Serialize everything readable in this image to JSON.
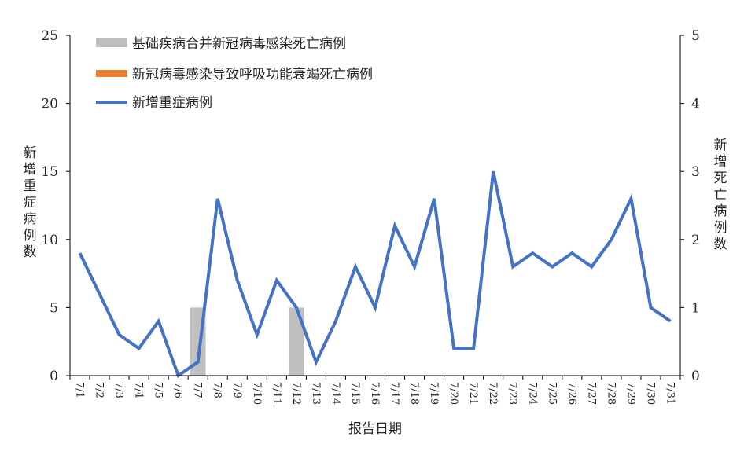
{
  "chart_data": {
    "type": "bar+line",
    "categories": [
      "7/1",
      "7/2",
      "7/3",
      "7/4",
      "7/5",
      "7/6",
      "7/7",
      "7/8",
      "7/9",
      "7/10",
      "7/11",
      "7/12",
      "7/13",
      "7/14",
      "7/15",
      "7/16",
      "7/17",
      "7/18",
      "7/19",
      "7/20",
      "7/21",
      "7/22",
      "7/23",
      "7/24",
      "7/25",
      "7/26",
      "7/27",
      "7/28",
      "7/29",
      "7/30",
      "7/31"
    ],
    "series": [
      {
        "name": "基础疾病合并新冠病毒感染死亡病例",
        "kind": "bar",
        "axis": "right",
        "color": "#bfbfbf",
        "values": [
          0,
          0,
          0,
          0,
          0,
          0,
          1,
          0,
          0,
          0,
          0,
          1,
          0,
          0,
          0,
          0,
          0,
          0,
          0,
          0,
          0,
          0,
          0,
          0,
          0,
          0,
          0,
          0,
          0,
          0,
          0
        ]
      },
      {
        "name": "新冠病毒感染导致呼吸功能衰竭死亡病例",
        "kind": "bar",
        "axis": "right",
        "color": "#ed7d31",
        "values": [
          0,
          0,
          0,
          0,
          0,
          0,
          0,
          0,
          0,
          0,
          0,
          0,
          0,
          0,
          0,
          0,
          0,
          0,
          0,
          0,
          0,
          0,
          0,
          0,
          0,
          0,
          0,
          0,
          0,
          0,
          0
        ]
      },
      {
        "name": "新增重症病例",
        "kind": "line",
        "axis": "left",
        "color": "#4472c4",
        "values": [
          9,
          6,
          3,
          2,
          4,
          0,
          1,
          13,
          7,
          3,
          7,
          5,
          1,
          4,
          8,
          5,
          11,
          8,
          13,
          2,
          2,
          15,
          8,
          9,
          8,
          9,
          8,
          10,
          13,
          5,
          4
        ]
      }
    ],
    "ylabel_left": "新增重症病例数",
    "ylabel_right": "新增死亡病例数",
    "xlabel": "报告日期",
    "ylim_left": [
      0,
      25
    ],
    "ylim_right": [
      0,
      5
    ],
    "yticks_left": [
      "0",
      "5",
      "10",
      "15",
      "20",
      "25"
    ],
    "yticks_right": [
      "0",
      "1",
      "2",
      "3",
      "4",
      "5"
    ],
    "grid": false,
    "legend_position": "top-left"
  }
}
